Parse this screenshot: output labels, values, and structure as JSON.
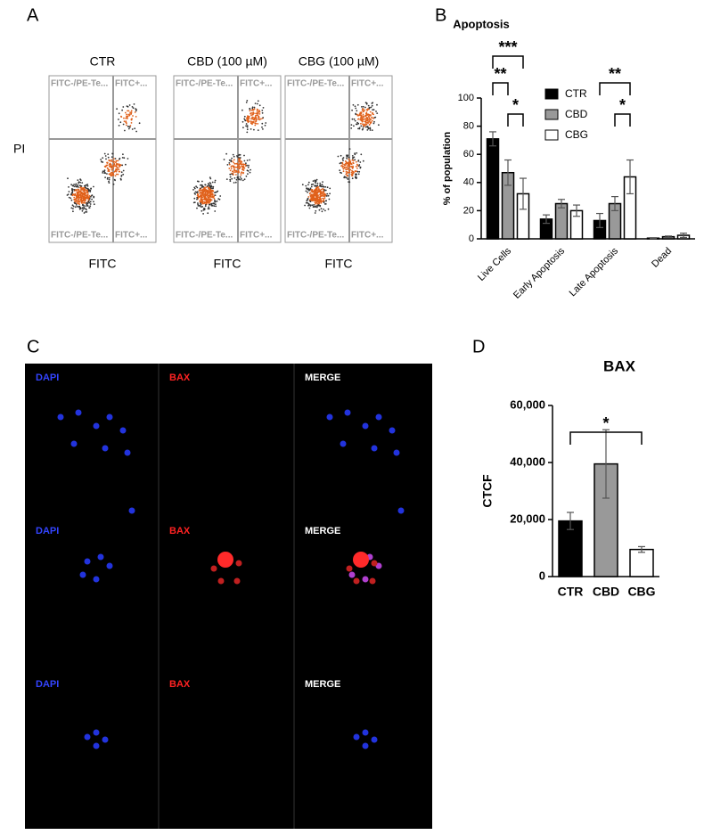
{
  "panels": [
    "A",
    "B",
    "C",
    "D"
  ],
  "flow_cytometry": {
    "y_label": "PI",
    "plots": [
      {
        "title": "CTR",
        "x_label": "FITC",
        "quadrants": [
          "FITC-/PE-Te...",
          "FITC+...",
          "FITC-/PE-Te...",
          "FITC+..."
        ]
      },
      {
        "title": "CBD (100 µM)",
        "x_label": "FITC",
        "quadrants": [
          "FITC-/PE-Te...",
          "FITC+...",
          "FITC-/PE-Te...",
          "FITC+..."
        ]
      },
      {
        "title": "CBG (100 µM)",
        "x_label": "FITC",
        "quadrants": [
          "FITC-/PE-Te...",
          "FITC+...",
          "FITC-/PE-Te...",
          "FITC+..."
        ]
      }
    ]
  },
  "microscopy": {
    "rows": [
      [
        "DAPI",
        "BAX",
        "MERGE"
      ],
      [
        "DAPI",
        "BAX",
        "MERGE"
      ],
      [
        "DAPI",
        "BAX",
        "MERGE"
      ]
    ]
  },
  "chart_data": [
    {
      "type": "bar",
      "title": "Apoptosis",
      "y_label": "% of population",
      "categories": [
        "Live Cells",
        "Early Apoptosis",
        "Late Apoptosis",
        "Dead"
      ],
      "series": [
        {
          "name": "CTR",
          "color": "#000000",
          "values": [
            71,
            14,
            13,
            0.5
          ],
          "errors": [
            5,
            3,
            5,
            0.3
          ]
        },
        {
          "name": "CBD",
          "color": "#999999",
          "values": [
            47,
            25,
            25,
            1.5
          ],
          "errors": [
            9,
            3,
            5,
            0.5
          ]
        },
        {
          "name": "CBG",
          "color": "#ffffff",
          "values": [
            32,
            20,
            44,
            2.5
          ],
          "errors": [
            11,
            4,
            12,
            1.5
          ]
        }
      ],
      "ylim": [
        0,
        100
      ],
      "yticks": [
        0,
        20,
        40,
        60,
        80,
        100
      ],
      "annotations": [
        "**",
        "***",
        "*",
        "**",
        "*"
      ]
    },
    {
      "type": "bar",
      "title": "BAX",
      "y_label": "CTCF",
      "categories": [
        "CTR",
        "CBD",
        "CBG"
      ],
      "values": [
        19500,
        39500,
        9500
      ],
      "errors": [
        3000,
        12000,
        1000
      ],
      "colors": [
        "#000000",
        "#999999",
        "#ffffff"
      ],
      "ylim": [
        0,
        60000
      ],
      "yticks": [
        0,
        {
          "value": 20000,
          "label": "20,000"
        },
        {
          "value": 40000,
          "label": "40,000"
        },
        {
          "value": 60000,
          "label": "60,000"
        }
      ],
      "annotations": [
        "*"
      ]
    }
  ]
}
